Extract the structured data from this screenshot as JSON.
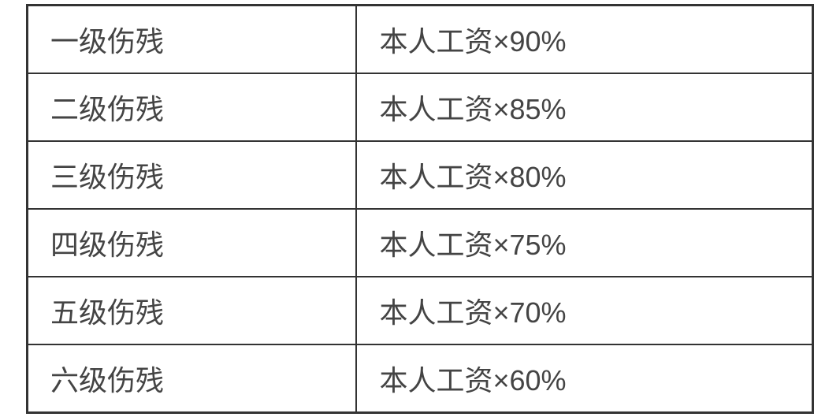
{
  "table": {
    "type": "table",
    "border_color": "#333333",
    "border_width": 2,
    "outer_border_width": 3,
    "background_color": "#ffffff",
    "text_color": "#444444",
    "font_size": 36,
    "columns": [
      {
        "key": "level",
        "width_percent": 42,
        "align": "left"
      },
      {
        "key": "compensation",
        "width_percent": 58,
        "align": "left"
      }
    ],
    "rows": [
      {
        "level": "一级伤残",
        "compensation": "本人工资×90%"
      },
      {
        "level": "二级伤残",
        "compensation": "本人工资×85%"
      },
      {
        "level": "三级伤残",
        "compensation": "本人工资×80%"
      },
      {
        "level": "四级伤残",
        "compensation": "本人工资×75%"
      },
      {
        "level": "五级伤残",
        "compensation": "本人工资×70%"
      },
      {
        "level": "六级伤残",
        "compensation": "本人工资×60%"
      }
    ]
  }
}
